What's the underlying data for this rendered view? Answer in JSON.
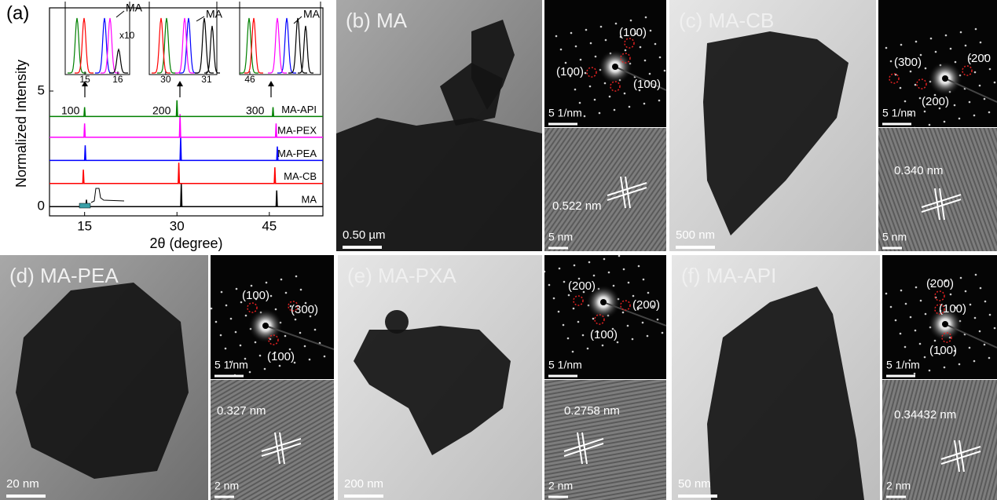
{
  "chart_data": {
    "type": "line",
    "panel_label": "(a)",
    "x_label": "2θ (degree)",
    "y_label": "Normalized Intensity",
    "xlim": [
      9.3,
      53.7
    ],
    "ylim": [
      -0.4,
      8.6
    ],
    "xticks": [
      15,
      30,
      45
    ],
    "yticks": [
      0,
      5
    ],
    "series": [
      {
        "name": "MA",
        "color": "#000000",
        "x": [
          9.3,
          15.2,
          15.3,
          15.4,
          30.6,
          30.7,
          30.8,
          46.1,
          46.2,
          46.3,
          53.7
        ],
        "values": [
          0,
          0,
          0.3,
          0,
          0,
          1.0,
          0,
          0,
          0.7,
          0,
          0
        ]
      },
      {
        "name": "MA-CB",
        "color": "#ff0000",
        "x": [
          9.3,
          14.7,
          14.8,
          14.9,
          30.2,
          30.3,
          30.4,
          45.8,
          45.9,
          46.0,
          53.7
        ],
        "values": [
          1,
          1,
          1.6,
          1,
          1,
          1.9,
          1,
          1,
          1.7,
          1,
          1
        ]
      },
      {
        "name": "MA-PEA",
        "color": "#0000ff",
        "x": [
          9.3,
          15.0,
          15.1,
          15.2,
          30.5,
          30.6,
          30.7,
          46.2,
          46.3,
          46.4,
          53.7
        ],
        "values": [
          2,
          2,
          2.65,
          2,
          2,
          3.0,
          2,
          2,
          2.6,
          2,
          2
        ]
      },
      {
        "name": "MA-PEX",
        "color": "#ff00ff",
        "x": [
          9.3,
          14.9,
          15.0,
          15.1,
          30.4,
          30.5,
          30.6,
          46.0,
          46.1,
          46.2,
          53.7
        ],
        "values": [
          3,
          3,
          3.6,
          3,
          3,
          4.0,
          3,
          3,
          3.6,
          3,
          3
        ]
      },
      {
        "name": "MA-API",
        "color": "#008000",
        "x": [
          9.3,
          14.9,
          15.0,
          15.1,
          29.9,
          30.0,
          30.1,
          45.5,
          45.6,
          45.7,
          53.7
        ],
        "values": [
          3.9,
          3.9,
          4.3,
          3.9,
          3.9,
          4.6,
          3.9,
          3.9,
          4.3,
          3.9,
          3.9
        ]
      }
    ],
    "annotations": [
      "100",
      "200",
      "300"
    ],
    "insets": [
      {
        "xlim": [
          14.4,
          16.36
        ],
        "xticks": [
          15,
          16
        ],
        "label": "MA",
        "note": "x10"
      },
      {
        "xlim": [
          29.6,
          31.25
        ],
        "xticks": [
          30,
          31
        ],
        "label": "MA"
      },
      {
        "xlim": [
          45.87,
          46.9
        ],
        "xticks": [
          46
        ],
        "label": "MA"
      }
    ]
  },
  "panels": [
    {
      "label": "(b) MA",
      "scale_bar": "0.50 µm",
      "saed": {
        "scale_bar": "5 1/nm",
        "spots": [
          "(100)",
          "(100)",
          "(100)"
        ]
      },
      "hrtem": {
        "spacing": "0.522 nm",
        "scale_bar": "5 nm"
      }
    },
    {
      "label": "(c) MA-CB",
      "scale_bar": "500 nm",
      "saed": {
        "scale_bar": "5 1/nm",
        "spots": [
          "(300)",
          "(200)",
          "(200"
        ]
      },
      "hrtem": {
        "spacing": "0.340 nm",
        "scale_bar": "5 nm"
      }
    },
    {
      "label": "(d) MA-PEA",
      "scale_bar": "20 nm",
      "saed": {
        "scale_bar": "5 1/nm",
        "spots": [
          "(100)",
          "(300)",
          "(100)"
        ]
      },
      "hrtem": {
        "spacing": "0.327 nm",
        "scale_bar": "2 nm"
      }
    },
    {
      "label": "(e) MA-PXA",
      "scale_bar": "200 nm",
      "saed": {
        "scale_bar": "5 1/nm",
        "spots": [
          "(200)",
          "(200)",
          "(100)"
        ]
      },
      "hrtem": {
        "spacing": "0.2758 nm",
        "scale_bar": "2 nm"
      }
    },
    {
      "label": "(f) MA-API",
      "scale_bar": "50 nm",
      "saed": {
        "scale_bar": "5 1/nm",
        "spots": [
          "(200)",
          "(100)",
          "(100)"
        ]
      },
      "hrtem": {
        "spacing": "0.34432 nm",
        "scale_bar": "2 nm"
      }
    }
  ]
}
